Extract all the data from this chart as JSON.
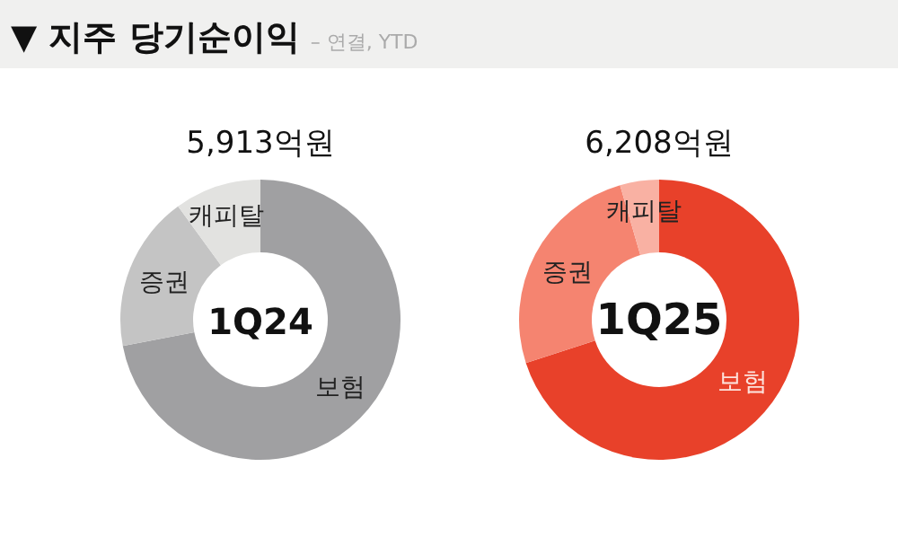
{
  "chart_data": [
    {
      "type": "other",
      "title": "▼ 지주 당기순이익",
      "subtitle": "– 연결, YTD"
    },
    {
      "type": "donut",
      "title": "5,913억원",
      "annotations": [
        "1Q24"
      ],
      "categories": [
        "보험",
        "증권",
        "캐피탈"
      ],
      "values": [
        72,
        18,
        10
      ],
      "colors": [
        "#a0a0a2",
        "#c4c4c4",
        "#e2e2e0"
      ]
    },
    {
      "type": "donut",
      "title": "6,208억원",
      "annotations": [
        "1Q25"
      ],
      "categories": [
        "보험",
        "증권",
        "캐피탈"
      ],
      "values": [
        70,
        25.5,
        4.5
      ],
      "colors": [
        "#e8412a",
        "#f58470",
        "#f9b1a3"
      ]
    }
  ]
}
